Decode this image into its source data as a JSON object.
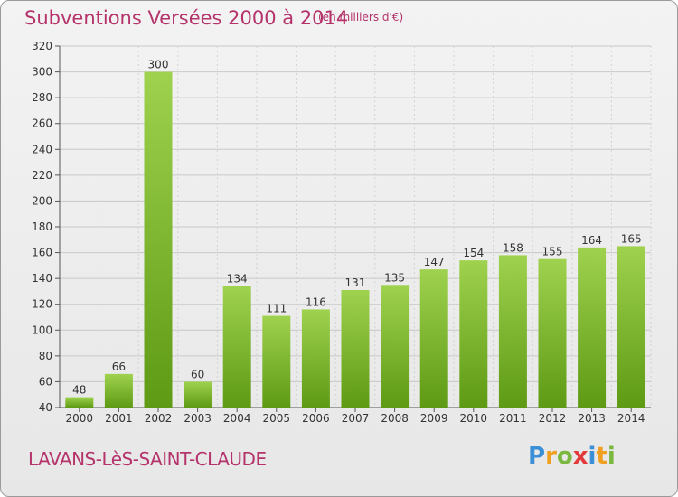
{
  "header": {
    "title": "Subventions Versées 2000 à 2014",
    "subtitle": "(en milliers d'€)"
  },
  "footer": {
    "commune": "LAVANS-LèS-SAINT-CLAUDE",
    "logo_text": "Proxiti"
  },
  "colors": {
    "title": "#b5336b",
    "bar_light": "#9fd24e",
    "bar_dark": "#5e9a14",
    "grid": "#c8c8c8"
  },
  "chart_data": {
    "type": "bar",
    "title": "Subventions Versées 2000 à 2014",
    "subtitle": "(en milliers d'€)",
    "xlabel": "",
    "ylabel": "",
    "categories": [
      "2000",
      "2001",
      "2002",
      "2003",
      "2004",
      "2005",
      "2006",
      "2007",
      "2008",
      "2009",
      "2010",
      "2011",
      "2012",
      "2013",
      "2014"
    ],
    "values": [
      48,
      66,
      300,
      60,
      134,
      111,
      116,
      131,
      135,
      147,
      154,
      158,
      155,
      164,
      165
    ],
    "ylim": [
      40,
      320
    ],
    "yticks": [
      40,
      60,
      80,
      100,
      120,
      140,
      160,
      180,
      200,
      220,
      240,
      260,
      280,
      300,
      320
    ],
    "grid": true,
    "data_labels": true
  }
}
